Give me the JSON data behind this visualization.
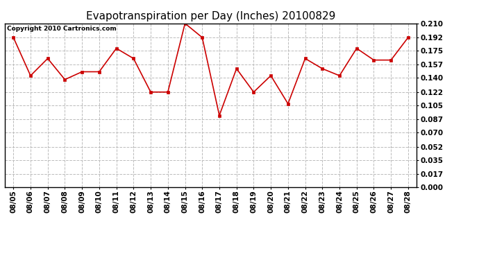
{
  "title": "Evapotranspiration per Day (Inches) 20100829",
  "copyright": "Copyright 2010 Cartronics.com",
  "dates": [
    "08/05",
    "08/06",
    "08/07",
    "08/08",
    "08/09",
    "08/10",
    "08/11",
    "08/12",
    "08/13",
    "08/14",
    "08/15",
    "08/16",
    "08/17",
    "08/18",
    "08/19",
    "08/20",
    "08/21",
    "08/22",
    "08/23",
    "08/24",
    "08/25",
    "08/26",
    "08/27",
    "08/28"
  ],
  "values": [
    0.192,
    0.143,
    0.165,
    0.138,
    0.148,
    0.148,
    0.178,
    0.165,
    0.122,
    0.122,
    0.21,
    0.192,
    0.092,
    0.152,
    0.122,
    0.143,
    0.107,
    0.165,
    0.152,
    0.143,
    0.178,
    0.163,
    0.163,
    0.192
  ],
  "line_color": "#cc0000",
  "marker": "s",
  "marker_size": 3,
  "background_color": "#ffffff",
  "grid_color": "#bbbbbb",
  "ylim": [
    0.0,
    0.21
  ],
  "yticks": [
    0.0,
    0.017,
    0.035,
    0.052,
    0.07,
    0.087,
    0.105,
    0.122,
    0.14,
    0.157,
    0.175,
    0.192,
    0.21
  ],
  "title_fontsize": 11,
  "tick_fontsize": 7.5,
  "copyright_fontsize": 6.5
}
